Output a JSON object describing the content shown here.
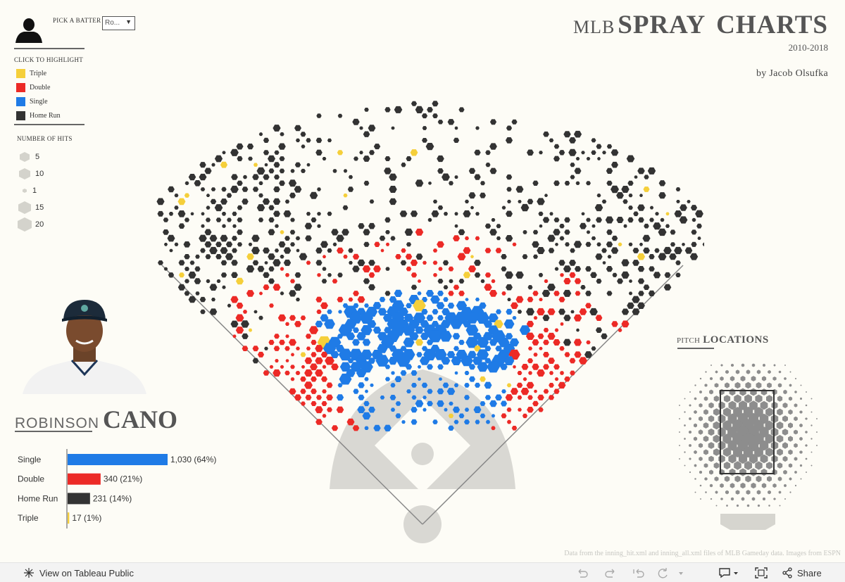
{
  "header": {
    "title_prefix": "MLB",
    "title_main": "SPRAY CHARTS",
    "years": "2010-2018",
    "byline": "by Jacob Olsufka"
  },
  "controls": {
    "pick_label": "PICK A BATTER",
    "batter_select_value": "Ro..."
  },
  "legend": {
    "title": "CLICK TO HIGHLIGHT",
    "items": [
      {
        "label": "Triple",
        "color": "#f5cf3a"
      },
      {
        "label": "Double",
        "color": "#ec2a26"
      },
      {
        "label": "Single",
        "color": "#1f7be6"
      },
      {
        "label": "Home Run",
        "color": "#333333"
      }
    ]
  },
  "size_legend": {
    "title": "NUMBER OF HITS",
    "items": [
      "5",
      "10",
      "1",
      "15",
      "20"
    ]
  },
  "player": {
    "first_name": "ROBINSON",
    "last_name": "CANO"
  },
  "pitch_locations": {
    "title_small": "PITCH",
    "title_big": "LOCATIONS"
  },
  "footnote": "Data from the inning_hit.xml and inning_all.xml files of MLB Gameday data. Images from ESPN",
  "toolbar": {
    "view_label": "View on Tableau Public",
    "share_label": "Share"
  },
  "chart_data": {
    "type": "bar",
    "categories": [
      "Single",
      "Double",
      "Home Run",
      "Triple"
    ],
    "values": [
      1030,
      340,
      231,
      17
    ],
    "labels": [
      "1,030 (64%)",
      "340 (21%)",
      "231 (14%)",
      "17 (1%)"
    ],
    "colors": [
      "#1f7be6",
      "#ec2a26",
      "#333333",
      "#f5cf3a"
    ],
    "xlim": [
      0,
      1030
    ]
  }
}
